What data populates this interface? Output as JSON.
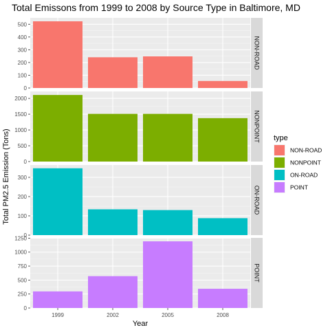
{
  "chart_data": {
    "type": "bar",
    "title": "Total Emissons from 1999 to 2008 by Source Type in Baltimore, MD",
    "xlabel": "Year",
    "ylabel": "Total PM2.5 Emission (Tons)",
    "categories": [
      "1999",
      "2002",
      "2005",
      "2008"
    ],
    "grid": true,
    "legend": {
      "title": "type",
      "position": "right"
    },
    "series": [
      {
        "name": "NON-ROAD",
        "color": "#F8766D",
        "values": [
          523,
          241,
          248,
          55
        ],
        "ylim": [
          0,
          550
        ],
        "ticks": [
          0,
          100,
          200,
          300,
          400,
          500
        ]
      },
      {
        "name": "NONPOINT",
        "color": "#7CAE00",
        "values": [
          2108,
          1510,
          1510,
          1374
        ],
        "ylim": [
          0,
          2220
        ],
        "ticks": [
          0,
          500,
          1000,
          1500,
          2000
        ]
      },
      {
        "name": "ON-ROAD",
        "color": "#00BFC4",
        "values": [
          347,
          134,
          130,
          88
        ],
        "ylim": [
          0,
          364
        ],
        "ticks": [
          0,
          100,
          200,
          300
        ]
      },
      {
        "name": "POINT",
        "color": "#C77CFF",
        "values": [
          297,
          570,
          1193,
          344
        ],
        "ylim": [
          0,
          1255
        ],
        "ticks": [
          0,
          250,
          500,
          750,
          1000,
          1250
        ]
      }
    ]
  }
}
